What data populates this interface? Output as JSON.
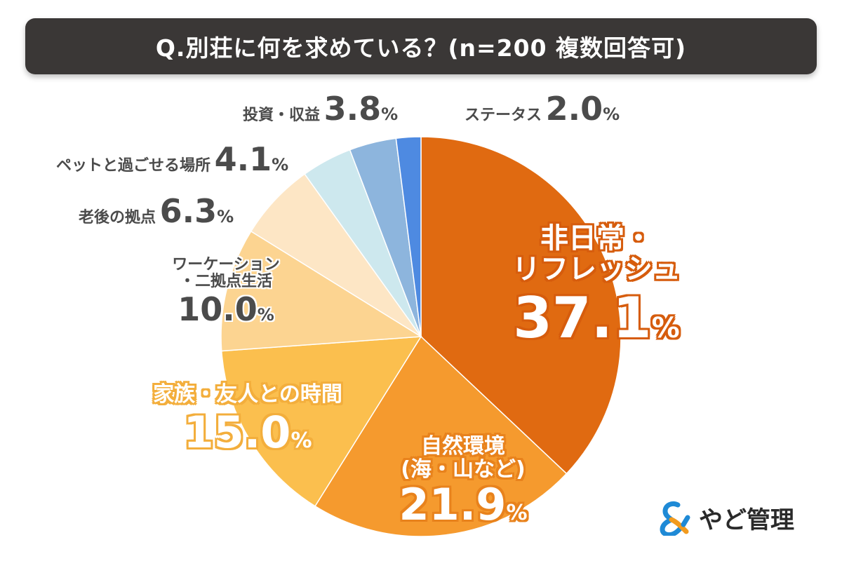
{
  "header": {
    "title": "Q.別荘に何を求めている？(n=200 複数回答可)"
  },
  "brand": {
    "name": "やど管理",
    "logo_lettering": "&"
  },
  "colors": {
    "title_bg": "#3a3736",
    "label_dark": "#4b4b4b"
  },
  "chart_data": {
    "type": "pie",
    "title": "Q.別荘に何を求めている？(n=200 複数回答可)",
    "unit": "%",
    "start": "12 o'clock",
    "direction": "clockwise",
    "slices": [
      {
        "name_lines": [
          "非日常・",
          "リフレッシュ"
        ],
        "value": 37.1,
        "value_text": "37.1",
        "color": "#e06a11"
      },
      {
        "name_lines": [
          "自然環境",
          "(海・山など)"
        ],
        "value": 21.9,
        "value_text": "21.9",
        "color": "#f59a2e"
      },
      {
        "name_lines": [
          "家族・友人との時間"
        ],
        "value": 15.0,
        "value_text": "15.0",
        "color": "#fbbf4e"
      },
      {
        "name_lines": [
          "ワーケーション",
          "・二拠点生活"
        ],
        "value": 10.0,
        "value_text": "10.0",
        "color": "#fcd491"
      },
      {
        "name_lines": [
          "老後の拠点"
        ],
        "value": 6.3,
        "value_text": "6.3",
        "color": "#fde6c5"
      },
      {
        "name_lines": [
          "ペットと過ごせる場所"
        ],
        "value": 4.1,
        "value_text": "4.1",
        "color": "#cde8ee"
      },
      {
        "name_lines": [
          "投資・収益"
        ],
        "value": 3.8,
        "value_text": "3.8",
        "color": "#8db5dd"
      },
      {
        "name_lines": [
          "ステータス"
        ],
        "value": 2.0,
        "value_text": "2.0",
        "color": "#4e8ae1"
      }
    ]
  }
}
